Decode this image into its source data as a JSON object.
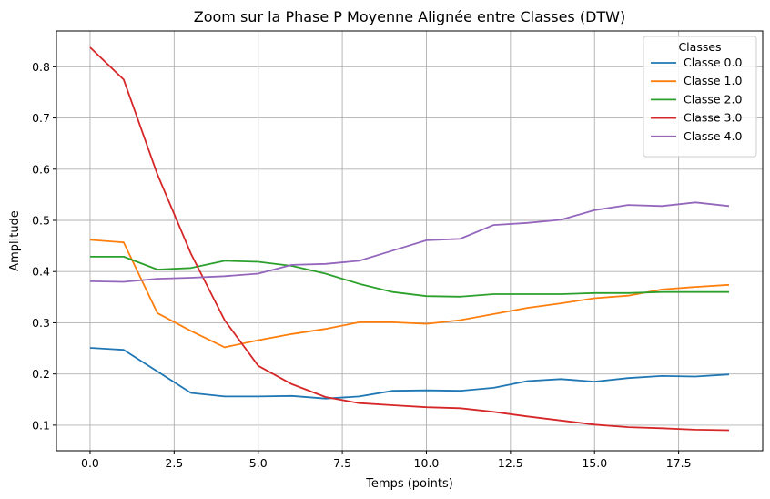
{
  "chart_data": {
    "type": "line",
    "title": "Zoom sur la Phase P Moyenne Alignée entre Classes (DTW)",
    "xlabel": "Temps (points)",
    "ylabel": "Amplitude",
    "xlim": [
      -1,
      20
    ],
    "ylim": [
      0.05,
      0.87
    ],
    "xticks": [
      0.0,
      2.5,
      5.0,
      7.5,
      10.0,
      12.5,
      15.0,
      17.5
    ],
    "xtick_labels": [
      "0.0",
      "2.5",
      "5.0",
      "7.5",
      "10.0",
      "12.5",
      "15.0",
      "17.5"
    ],
    "yticks": [
      0.1,
      0.2,
      0.3,
      0.4,
      0.5,
      0.6,
      0.7,
      0.8
    ],
    "ytick_labels": [
      "0.1",
      "0.2",
      "0.3",
      "0.4",
      "0.5",
      "0.6",
      "0.7",
      "0.8"
    ],
    "grid": true,
    "legend": {
      "title": "Classes",
      "position": "top-right"
    },
    "x": [
      0,
      1,
      2,
      3,
      4,
      5,
      6,
      7,
      8,
      9,
      10,
      11,
      12,
      13,
      14,
      15,
      16,
      17,
      18,
      19
    ],
    "series": [
      {
        "name": "Classe 0.0",
        "color": "#1f77b4",
        "values": [
          0.251,
          0.247,
          0.205,
          0.163,
          0.156,
          0.156,
          0.157,
          0.152,
          0.156,
          0.167,
          0.168,
          0.167,
          0.173,
          0.186,
          0.19,
          0.185,
          0.192,
          0.196,
          0.195,
          0.199
        ]
      },
      {
        "name": "Classe 1.0",
        "color": "#ff7f0e",
        "values": [
          0.462,
          0.457,
          0.319,
          0.284,
          0.252,
          0.266,
          0.278,
          0.288,
          0.301,
          0.301,
          0.298,
          0.305,
          0.317,
          0.329,
          0.338,
          0.348,
          0.353,
          0.365,
          0.37,
          0.374
        ]
      },
      {
        "name": "Classe 2.0",
        "color": "#2ca02c",
        "values": [
          0.429,
          0.429,
          0.404,
          0.407,
          0.421,
          0.419,
          0.411,
          0.396,
          0.376,
          0.36,
          0.352,
          0.351,
          0.356,
          0.356,
          0.356,
          0.358,
          0.358,
          0.36,
          0.36,
          0.36
        ]
      },
      {
        "name": "Classe 3.0",
        "color": "#d62728",
        "values": [
          0.838,
          0.775,
          0.59,
          0.435,
          0.305,
          0.216,
          0.18,
          0.155,
          0.143,
          0.139,
          0.135,
          0.133,
          0.126,
          0.117,
          0.109,
          0.101,
          0.096,
          0.094,
          0.091,
          0.09
        ]
      },
      {
        "name": "Classe 4.0",
        "color": "#9467bd",
        "values": [
          0.381,
          0.38,
          0.386,
          0.388,
          0.391,
          0.396,
          0.413,
          0.415,
          0.421,
          0.441,
          0.461,
          0.464,
          0.491,
          0.495,
          0.501,
          0.52,
          0.53,
          0.528,
          0.535,
          0.528
        ]
      }
    ]
  }
}
